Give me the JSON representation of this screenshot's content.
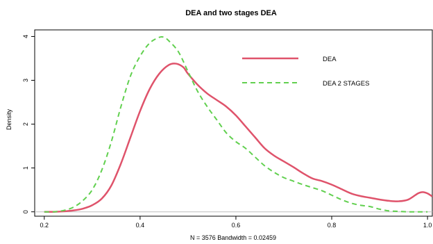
{
  "chart_data": {
    "type": "line",
    "title": "DEA and two stages DEA",
    "xlabel": "N = 3576   Bandwidth = 0.02459",
    "ylabel": "Density",
    "xlim": [
      0.18,
      1.01
    ],
    "ylim": [
      -0.1,
      4.15
    ],
    "x_ticks": [
      0.2,
      0.4,
      0.6,
      0.8,
      1.0
    ],
    "x_tick_labels": [
      "0.2",
      "0.4",
      "0.6",
      "0.8",
      "1.0"
    ],
    "y_ticks": [
      0,
      1,
      2,
      3,
      4
    ],
    "y_tick_labels": [
      "0",
      "1",
      "2",
      "3",
      "4"
    ],
    "grid": false,
    "legend_position": "top-right",
    "series": [
      {
        "name": "DEA",
        "color": "#df536b",
        "style": "solid",
        "x": [
          0.2,
          0.22,
          0.24,
          0.26,
          0.28,
          0.3,
          0.32,
          0.34,
          0.36,
          0.38,
          0.4,
          0.42,
          0.44,
          0.46,
          0.475,
          0.49,
          0.5,
          0.52,
          0.54,
          0.56,
          0.58,
          0.6,
          0.62,
          0.64,
          0.66,
          0.68,
          0.7,
          0.72,
          0.74,
          0.76,
          0.78,
          0.8,
          0.82,
          0.84,
          0.86,
          0.88,
          0.9,
          0.92,
          0.94,
          0.96,
          0.98,
          0.99,
          1.0,
          1.01
        ],
        "y": [
          0.0,
          0.0,
          0.01,
          0.03,
          0.07,
          0.15,
          0.3,
          0.6,
          1.1,
          1.7,
          2.3,
          2.8,
          3.15,
          3.35,
          3.38,
          3.3,
          3.15,
          2.9,
          2.7,
          2.55,
          2.4,
          2.2,
          1.95,
          1.7,
          1.45,
          1.28,
          1.15,
          1.02,
          0.88,
          0.76,
          0.7,
          0.62,
          0.52,
          0.42,
          0.36,
          0.32,
          0.28,
          0.25,
          0.24,
          0.28,
          0.42,
          0.45,
          0.42,
          0.35
        ]
      },
      {
        "name": "DEA 2 STAGES",
        "color": "#61d04f",
        "style": "dashed",
        "x": [
          0.2,
          0.22,
          0.24,
          0.26,
          0.28,
          0.3,
          0.32,
          0.34,
          0.36,
          0.38,
          0.4,
          0.42,
          0.44,
          0.45,
          0.46,
          0.48,
          0.5,
          0.52,
          0.54,
          0.56,
          0.58,
          0.6,
          0.62,
          0.64,
          0.66,
          0.68,
          0.7,
          0.72,
          0.74,
          0.76,
          0.78,
          0.8,
          0.82,
          0.84,
          0.86,
          0.88,
          0.9,
          0.92,
          0.94,
          0.96,
          0.98,
          1.0
        ],
        "y": [
          0.0,
          0.0,
          0.03,
          0.1,
          0.25,
          0.5,
          0.95,
          1.6,
          2.4,
          3.1,
          3.55,
          3.85,
          3.98,
          3.98,
          3.9,
          3.65,
          3.2,
          2.75,
          2.4,
          2.1,
          1.8,
          1.6,
          1.45,
          1.25,
          1.05,
          0.9,
          0.78,
          0.7,
          0.62,
          0.55,
          0.48,
          0.38,
          0.28,
          0.2,
          0.15,
          0.12,
          0.06,
          0.02,
          0.01,
          0.0,
          0.0,
          0.0
        ]
      }
    ]
  }
}
